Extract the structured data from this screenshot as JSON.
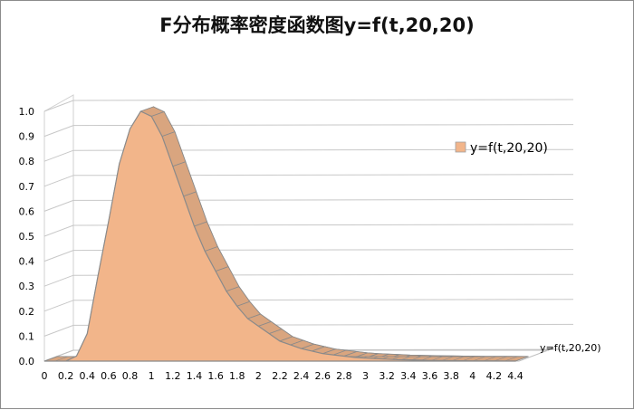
{
  "chart_data": {
    "type": "area",
    "title": "F分布概率密度函数图y=f(t,20,20)",
    "categories": [
      "0",
      "0.2",
      "0.4",
      "0.6",
      "0.8",
      "1",
      "1.2",
      "1.4",
      "1.6",
      "1.8",
      "2",
      "2.2",
      "2.4",
      "2.6",
      "2.8",
      "3",
      "3.2",
      "3.4",
      "3.6",
      "3.8",
      "4",
      "4.2",
      "4.4"
    ],
    "x": [
      0,
      0.1,
      0.2,
      0.3,
      0.4,
      0.5,
      0.6,
      0.7,
      0.8,
      0.9,
      1.0,
      1.1,
      1.2,
      1.3,
      1.4,
      1.5,
      1.6,
      1.7,
      1.8,
      1.9,
      2.0,
      2.1,
      2.2,
      2.3,
      2.4,
      2.5,
      2.6,
      2.7,
      2.8,
      2.9,
      3.0,
      3.1,
      3.2,
      3.3,
      3.4,
      3.5,
      3.6,
      3.7,
      3.8,
      3.9,
      4.0,
      4.1,
      4.2,
      4.3,
      4.4
    ],
    "series": [
      {
        "name": "y=f(t,20,20)",
        "values": [
          0,
          0,
          0,
          0.02,
          0.11,
          0.34,
          0.56,
          0.79,
          0.93,
          1.0,
          0.98,
          0.9,
          0.78,
          0.66,
          0.54,
          0.44,
          0.36,
          0.28,
          0.22,
          0.17,
          0.14,
          0.11,
          0.08,
          0.065,
          0.05,
          0.04,
          0.03,
          0.025,
          0.02,
          0.015,
          0.012,
          0.01,
          0.008,
          0.006,
          0.005,
          0.004,
          0.003,
          0.0025,
          0.002,
          0.0015,
          0.001,
          0.001,
          0.0008,
          0.0006,
          0.0005
        ],
        "color": "#f2b58a",
        "stroke": "#8a8a8a",
        "top_color": "#d9a57f"
      }
    ],
    "yticks": [
      "0.0",
      "0.1",
      "0.2",
      "0.3",
      "0.4",
      "0.5",
      "0.6",
      "0.7",
      "0.8",
      "0.9",
      "1.0"
    ],
    "ylim": [
      0,
      1.0
    ],
    "depth_label": "y=f(t,20,20)",
    "grid": true,
    "legend": {
      "position": "right",
      "label": "y=f(t,20,20)"
    }
  }
}
